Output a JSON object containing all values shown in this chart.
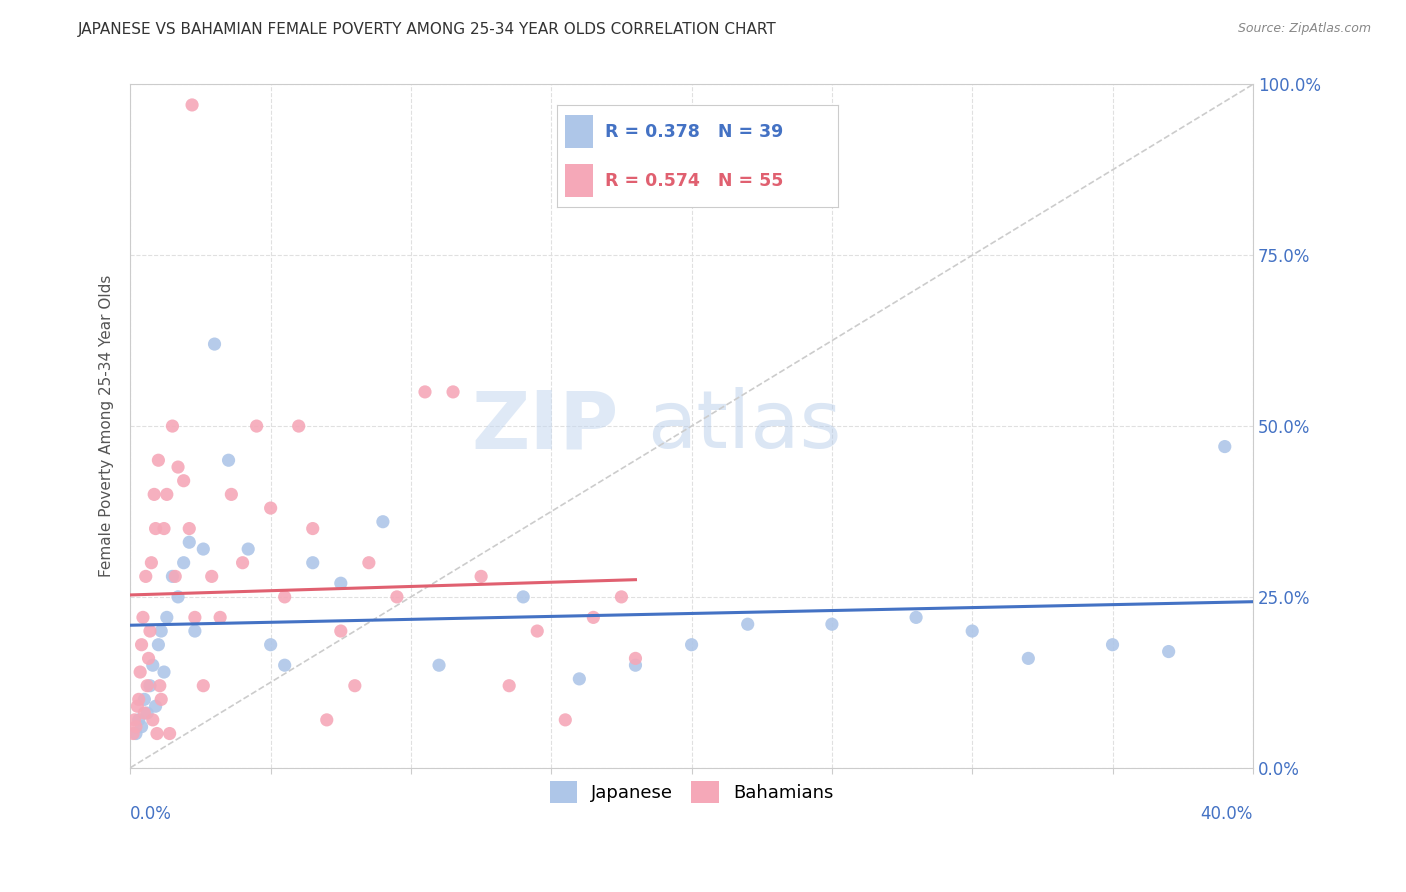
{
  "title": "JAPANESE VS BAHAMIAN FEMALE POVERTY AMONG 25-34 YEAR OLDS CORRELATION CHART",
  "source": "Source: ZipAtlas.com",
  "ylabel": "Female Poverty Among 25-34 Year Olds",
  "ytick_labels": [
    "0.0%",
    "25.0%",
    "50.0%",
    "75.0%",
    "100.0%"
  ],
  "ytick_values": [
    0,
    25,
    50,
    75,
    100
  ],
  "xtick_left_label": "0.0%",
  "xtick_right_label": "40.0%",
  "xlim": [
    0,
    40
  ],
  "ylim": [
    0,
    100
  ],
  "legend_r_japanese": "R = 0.378",
  "legend_n_japanese": "N = 39",
  "legend_r_bahamian": "R = 0.574",
  "legend_n_bahamian": "N = 55",
  "japanese_color": "#aec6e8",
  "bahamian_color": "#f5a8b8",
  "japanese_line_color": "#4472c4",
  "bahamian_line_color": "#e06070",
  "diagonal_color": "#cccccc",
  "background_color": "#ffffff",
  "watermark_zip": "ZIP",
  "watermark_atlas": "atlas",
  "japanese_x": [
    0.2,
    0.3,
    0.4,
    0.5,
    0.6,
    0.7,
    0.8,
    0.9,
    1.0,
    1.1,
    1.2,
    1.3,
    1.5,
    1.7,
    1.9,
    2.1,
    2.3,
    2.6,
    3.0,
    3.5,
    4.2,
    5.0,
    5.5,
    6.5,
    7.5,
    9.0,
    11.0,
    14.0,
    16.0,
    18.0,
    20.0,
    22.0,
    25.0,
    28.0,
    30.0,
    32.0,
    35.0,
    37.0,
    39.0
  ],
  "japanese_y": [
    5,
    7,
    6,
    10,
    8,
    12,
    15,
    9,
    18,
    20,
    14,
    22,
    28,
    25,
    30,
    33,
    20,
    32,
    62,
    45,
    32,
    18,
    15,
    30,
    27,
    36,
    15,
    25,
    13,
    15,
    18,
    21,
    21,
    22,
    20,
    16,
    18,
    17,
    47
  ],
  "bahamian_x": [
    0.1,
    0.15,
    0.2,
    0.25,
    0.3,
    0.35,
    0.4,
    0.45,
    0.5,
    0.55,
    0.6,
    0.65,
    0.7,
    0.75,
    0.8,
    0.85,
    0.9,
    0.95,
    1.0,
    1.05,
    1.1,
    1.2,
    1.3,
    1.4,
    1.5,
    1.6,
    1.7,
    1.9,
    2.1,
    2.3,
    2.6,
    2.9,
    3.2,
    3.6,
    4.0,
    4.5,
    5.0,
    5.5,
    6.0,
    6.5,
    7.0,
    7.5,
    8.0,
    8.5,
    9.5,
    10.5,
    11.5,
    12.5,
    13.5,
    14.5,
    15.5,
    16.5,
    17.5,
    18.0,
    2.2
  ],
  "bahamian_y": [
    5,
    7,
    6,
    9,
    10,
    14,
    18,
    22,
    8,
    28,
    12,
    16,
    20,
    30,
    7,
    40,
    35,
    5,
    45,
    12,
    10,
    35,
    40,
    5,
    50,
    28,
    44,
    42,
    35,
    22,
    12,
    28,
    22,
    40,
    30,
    50,
    38,
    25,
    50,
    35,
    7,
    20,
    12,
    30,
    25,
    55,
    55,
    28,
    12,
    20,
    7,
    22,
    25,
    16,
    97
  ]
}
